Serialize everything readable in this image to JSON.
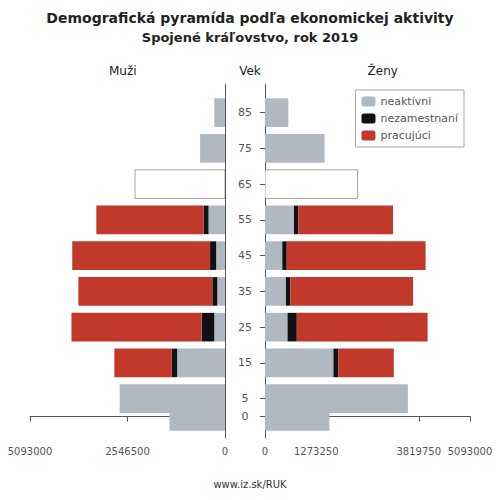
{
  "chart_data": [
    {
      "type": "bar",
      "orientation": "horizontal",
      "stacked": true,
      "title": "Demografická pyramída podľa ekonomickej aktivity",
      "subtitle": "Spojené kráľovstvo, rok 2019",
      "xlabel": "Muži",
      "y": [
        85,
        75,
        65,
        55,
        45,
        35,
        25,
        15,
        5,
        0
      ],
      "ylim": [
        -6,
        93
      ],
      "xlim": [
        5093000,
        0
      ],
      "xticks": [
        5093000,
        2546500,
        0
      ],
      "grid": false,
      "tick_labels": "x",
      "series": [
        {
          "name": "neaktívni",
          "color": "#b0b8c1",
          "colors": [
            "#b0b8c1",
            "#b0b8c1",
            "#ffffff",
            "#b0b8c1",
            "#b0b8c1",
            "#b0b8c1",
            "#b0b8c1",
            "#b0b8c1",
            "#b0b8c1",
            "#b0b8c1"
          ],
          "values": [
            280000,
            650000,
            2350000,
            430000,
            230000,
            200000,
            280000,
            1250000,
            2750000,
            1450000
          ]
        },
        {
          "name": "nezamestnaní",
          "color": "#111111",
          "values": [
            0,
            0,
            0,
            130000,
            160000,
            130000,
            330000,
            140000,
            0,
            0
          ]
        },
        {
          "name": "pracujúci",
          "color": "#c0392b",
          "values": [
            0,
            0,
            0,
            2800000,
            3600000,
            3500000,
            3400000,
            1500000,
            0,
            0
          ]
        }
      ],
      "annotations": [
        "www.iz.sk/RUK"
      ]
    },
    {
      "type": "bar",
      "orientation": "horizontal",
      "stacked": true,
      "xlabel": "Ženy",
      "ylabel": "Vek",
      "y": [
        85,
        75,
        65,
        55,
        45,
        35,
        25,
        15,
        5,
        0
      ],
      "ylim": [
        -6,
        93
      ],
      "yticks": [
        85,
        75,
        65,
        55,
        45,
        35,
        25,
        15,
        5,
        0
      ],
      "xlim": [
        0,
        5093000
      ],
      "xticks": [
        0,
        1273250,
        3819750,
        5093000
      ],
      "grid": false,
      "legend": "upper right",
      "series": [
        {
          "name": "neaktívni",
          "color": "#b0b8c1",
          "colors": [
            "#b0b8c1",
            "#b0b8c1",
            "#ffffff",
            "#b0b8c1",
            "#b0b8c1",
            "#b0b8c1",
            "#b0b8c1",
            "#b0b8c1",
            "#b0b8c1",
            "#b0b8c1"
          ],
          "values": [
            580000,
            1480000,
            2300000,
            720000,
            430000,
            520000,
            560000,
            1700000,
            3550000,
            1600000
          ]
        },
        {
          "name": "nezamestnaní",
          "color": "#111111",
          "values": [
            0,
            0,
            0,
            110000,
            110000,
            110000,
            230000,
            120000,
            0,
            0
          ]
        },
        {
          "name": "pracujúci",
          "color": "#c0392b",
          "values": [
            0,
            0,
            0,
            2350000,
            3450000,
            3050000,
            3250000,
            1380000,
            0,
            0
          ]
        }
      ]
    }
  ]
}
